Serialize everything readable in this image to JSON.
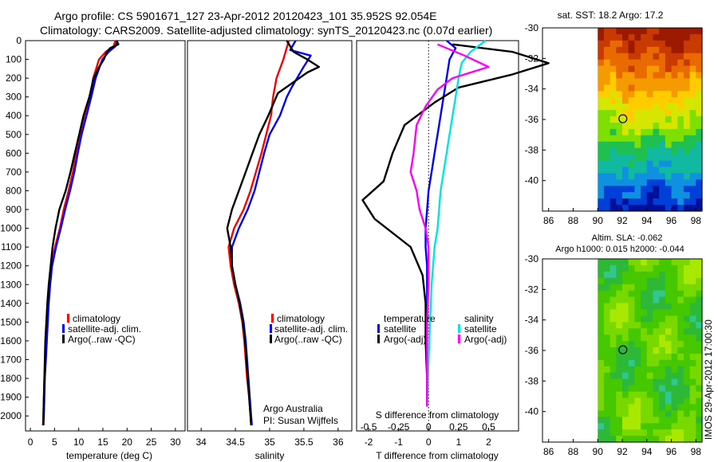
{
  "header": {
    "line1": "Argo profile: CS 5901671_127 23-Apr-2012 20120423_101 35.952S 92.054E",
    "line2": "Climatology: CARS2009. Satellite-adjusted climatology: synTS_20120423.nc (0.07d earlier)"
  },
  "credits": {
    "program": "Argo Australia",
    "pi": "PI: Susan Wijffels",
    "side_stamp": "IMOS 29-Apr-2012 17:00:30"
  },
  "colors": {
    "climatology": "#ff0000",
    "satellite": "#0000ff",
    "argo": "#000000",
    "sat_salinity": "#00e5e5",
    "argo_salinity": "#ff00ff",
    "marker": "#000000"
  },
  "chart_data": [
    {
      "id": "temperature",
      "type": "line",
      "xlabel": "temperature (deg C)",
      "xlim": [
        -1,
        32
      ],
      "xticks": [
        0,
        5,
        10,
        15,
        20,
        25,
        30
      ],
      "ylim": [
        0,
        2080
      ],
      "yticks": [
        0,
        100,
        200,
        300,
        400,
        500,
        600,
        700,
        800,
        900,
        1000,
        1100,
        1200,
        1300,
        1400,
        1500,
        1600,
        1700,
        1800,
        1900,
        2000
      ],
      "legend": [
        "climatology",
        "satellite-adj. clim.",
        "Argo(..raw -QC)"
      ],
      "series": [
        {
          "name": "climatology",
          "color_key": "climatology",
          "points": [
            [
              17.6,
              0
            ],
            [
              17.2,
              30
            ],
            [
              15.6,
              60
            ],
            [
              14.2,
              100
            ],
            [
              13.6,
              150
            ],
            [
              13.0,
              200
            ],
            [
              12.3,
              300
            ],
            [
              11.2,
              400
            ],
            [
              10.3,
              500
            ],
            [
              9.5,
              600
            ],
            [
              8.8,
              700
            ],
            [
              7.9,
              800
            ],
            [
              6.9,
              900
            ],
            [
              6.1,
              1000
            ],
            [
              5.1,
              1100
            ],
            [
              4.4,
              1200
            ],
            [
              4.0,
              1300
            ],
            [
              3.7,
              1400
            ],
            [
              3.5,
              1500
            ],
            [
              3.3,
              1600
            ],
            [
              3.1,
              1700
            ],
            [
              2.9,
              1800
            ],
            [
              2.8,
              1900
            ],
            [
              2.7,
              2000
            ],
            [
              2.6,
              2050
            ]
          ]
        },
        {
          "name": "satellite-adj. clim.",
          "color_key": "satellite",
          "points": [
            [
              18.0,
              0
            ],
            [
              17.6,
              30
            ],
            [
              16.2,
              60
            ],
            [
              14.9,
              100
            ],
            [
              14.2,
              150
            ],
            [
              13.5,
              200
            ],
            [
              12.6,
              300
            ],
            [
              11.6,
              400
            ],
            [
              10.6,
              500
            ],
            [
              9.8,
              600
            ],
            [
              9.1,
              700
            ],
            [
              8.2,
              800
            ],
            [
              7.2,
              900
            ],
            [
              6.3,
              1000
            ],
            [
              5.3,
              1100
            ],
            [
              4.5,
              1200
            ],
            [
              4.1,
              1300
            ],
            [
              3.8,
              1400
            ],
            [
              3.6,
              1500
            ],
            [
              3.4,
              1600
            ],
            [
              3.2,
              1700
            ],
            [
              3.0,
              1800
            ],
            [
              2.9,
              1900
            ],
            [
              2.8,
              2000
            ],
            [
              2.7,
              2050
            ]
          ]
        },
        {
          "name": "Argo(..raw -QC)",
          "color_key": "argo",
          "points": [
            [
              17.8,
              0
            ],
            [
              18.2,
              20
            ],
            [
              16.5,
              40
            ],
            [
              15.8,
              60
            ],
            [
              15.2,
              100
            ],
            [
              14.0,
              150
            ],
            [
              13.1,
              200
            ],
            [
              12.2,
              300
            ],
            [
              11.0,
              400
            ],
            [
              10.1,
              500
            ],
            [
              9.2,
              600
            ],
            [
              8.3,
              700
            ],
            [
              7.3,
              800
            ],
            [
              6.0,
              900
            ],
            [
              5.2,
              1000
            ],
            [
              4.6,
              1100
            ],
            [
              4.2,
              1200
            ],
            [
              3.8,
              1300
            ],
            [
              3.5,
              1400
            ],
            [
              3.3,
              1500
            ],
            [
              3.1,
              1600
            ],
            [
              3.0,
              1700
            ],
            [
              2.9,
              1800
            ],
            [
              2.8,
              1900
            ],
            [
              2.7,
              2000
            ],
            [
              2.7,
              2050
            ]
          ]
        }
      ]
    },
    {
      "id": "salinity",
      "type": "line",
      "xlabel": "salinity",
      "xlim": [
        33.8,
        36.2
      ],
      "xticks": [
        34,
        34.5,
        35,
        35.5,
        36
      ],
      "ylim": [
        0,
        2080
      ],
      "legend": [
        "climatology",
        "satellite-adj. clim.",
        "Argo(..raw -QC)"
      ],
      "series": [
        {
          "name": "climatology",
          "color_key": "climatology",
          "points": [
            [
              35.28,
              0
            ],
            [
              35.2,
              100
            ],
            [
              35.1,
              200
            ],
            [
              35.05,
              300
            ],
            [
              35.02,
              400
            ],
            [
              34.95,
              500
            ],
            [
              34.88,
              600
            ],
            [
              34.8,
              700
            ],
            [
              34.72,
              800
            ],
            [
              34.62,
              900
            ],
            [
              34.48,
              1000
            ],
            [
              34.4,
              1100
            ],
            [
              34.43,
              1200
            ],
            [
              34.48,
              1300
            ],
            [
              34.55,
              1400
            ],
            [
              34.6,
              1500
            ],
            [
              34.63,
              1600
            ],
            [
              34.65,
              1700
            ],
            [
              34.67,
              1800
            ],
            [
              34.7,
              1900
            ],
            [
              34.72,
              2000
            ],
            [
              34.73,
              2050
            ]
          ]
        },
        {
          "name": "satellite-adj. clim.",
          "color_key": "satellite",
          "points": [
            [
              35.38,
              0
            ],
            [
              35.3,
              50
            ],
            [
              35.6,
              80
            ],
            [
              35.48,
              150
            ],
            [
              35.32,
              250
            ],
            [
              35.25,
              300
            ],
            [
              35.15,
              400
            ],
            [
              35.0,
              500
            ],
            [
              34.92,
              600
            ],
            [
              34.85,
              700
            ],
            [
              34.78,
              800
            ],
            [
              34.68,
              900
            ],
            [
              34.55,
              1000
            ],
            [
              34.45,
              1100
            ],
            [
              34.45,
              1200
            ],
            [
              34.5,
              1300
            ],
            [
              34.57,
              1400
            ],
            [
              34.62,
              1500
            ],
            [
              34.65,
              1600
            ],
            [
              34.67,
              1700
            ],
            [
              34.69,
              1800
            ],
            [
              34.71,
              1900
            ],
            [
              34.73,
              2000
            ],
            [
              34.74,
              2050
            ]
          ]
        },
        {
          "name": "Argo(..raw -QC)",
          "color_key": "argo",
          "points": [
            [
              35.25,
              0
            ],
            [
              35.35,
              60
            ],
            [
              35.55,
              100
            ],
            [
              35.72,
              140
            ],
            [
              35.55,
              170
            ],
            [
              35.12,
              280
            ],
            [
              34.98,
              400
            ],
            [
              34.85,
              500
            ],
            [
              34.75,
              600
            ],
            [
              34.65,
              700
            ],
            [
              34.55,
              800
            ],
            [
              34.45,
              900
            ],
            [
              34.38,
              1000
            ],
            [
              34.43,
              1100
            ],
            [
              34.45,
              1200
            ],
            [
              34.5,
              1300
            ],
            [
              34.56,
              1400
            ],
            [
              34.61,
              1500
            ],
            [
              34.64,
              1600
            ],
            [
              34.66,
              1700
            ],
            [
              34.68,
              1800
            ],
            [
              34.7,
              1900
            ],
            [
              34.72,
              2000
            ],
            [
              34.73,
              2050
            ]
          ]
        }
      ]
    },
    {
      "id": "difference",
      "type": "line",
      "xlabel": "T difference from climatology",
      "xlabel_top": "S difference from climatology",
      "xlim": [
        -2.4,
        3.0
      ],
      "xticks": [
        -2,
        -1,
        0,
        1,
        2
      ],
      "xticks_top": [
        {
          "label": "-0.5",
          "x": -2
        },
        {
          "label": "-0.25",
          "x": -1
        },
        {
          "label": "0",
          "x": 0
        },
        {
          "label": "0.25",
          "x": 1
        },
        {
          "label": "0.5",
          "x": 2
        }
      ],
      "ylim": [
        0,
        2080
      ],
      "zero_line": 0,
      "legend_left_title": "temperature",
      "legend_right_title": "salinity",
      "legend": [
        "satellite",
        "Argo(-adj)",
        "satellite",
        "Argo(-adj)"
      ],
      "series": [
        {
          "name": "satellite",
          "color_key": "satellite",
          "points": [
            [
              0.6,
              0
            ],
            [
              0.9,
              40
            ],
            [
              0.7,
              100
            ],
            [
              0.6,
              200
            ],
            [
              0.5,
              300
            ],
            [
              0.4,
              400
            ],
            [
              0.3,
              500
            ],
            [
              0.2,
              600
            ],
            [
              0.1,
              700
            ],
            [
              0.0,
              800
            ],
            [
              -0.1,
              1000
            ],
            [
              -0.1,
              1100
            ],
            [
              -0.05,
              1200
            ],
            [
              -0.05,
              1400
            ],
            [
              -0.05,
              1600
            ],
            [
              -0.05,
              1800
            ],
            [
              -0.05,
              1950
            ]
          ]
        },
        {
          "name": "Argo(-adj)",
          "color_key": "argo",
          "points": [
            [
              0.8,
              20
            ],
            [
              2.8,
              60
            ],
            [
              4.0,
              120
            ],
            [
              2.8,
              180
            ],
            [
              1.0,
              250
            ],
            [
              0.2,
              330
            ],
            [
              -0.8,
              450
            ],
            [
              -1.2,
              600
            ],
            [
              -1.5,
              750
            ],
            [
              -2.2,
              850
            ],
            [
              -1.8,
              950
            ],
            [
              -0.6,
              1100
            ],
            [
              -0.2,
              1250
            ],
            [
              -0.1,
              1400
            ],
            [
              -0.1,
              1600
            ],
            [
              -0.05,
              1800
            ],
            [
              -0.05,
              1950
            ]
          ]
        },
        {
          "name": "sat salinity",
          "color_key": "sat_salinity",
          "points": [
            [
              1.9,
              0
            ],
            [
              1.4,
              60
            ],
            [
              1.1,
              120
            ],
            [
              1.0,
              200
            ],
            [
              0.9,
              300
            ],
            [
              0.8,
              400
            ],
            [
              0.7,
              500
            ],
            [
              0.6,
              600
            ],
            [
              0.5,
              700
            ],
            [
              0.4,
              800
            ],
            [
              0.35,
              900
            ],
            [
              0.3,
              1000
            ],
            [
              0.2,
              1100
            ],
            [
              0.15,
              1200
            ],
            [
              0.1,
              1300
            ],
            [
              0.05,
              1500
            ],
            [
              0.0,
              1700
            ],
            [
              -0.05,
              1950
            ]
          ]
        },
        {
          "name": "Argo salinity",
          "color_key": "argo_salinity",
          "points": [
            [
              0.3,
              20
            ],
            [
              1.2,
              80
            ],
            [
              2.0,
              140
            ],
            [
              0.8,
              200
            ],
            [
              0.3,
              260
            ],
            [
              -0.1,
              350
            ],
            [
              -0.4,
              450
            ],
            [
              -0.5,
              600
            ],
            [
              -0.6,
              700
            ],
            [
              -0.4,
              800
            ],
            [
              -0.3,
              900
            ],
            [
              -0.1,
              1000
            ],
            [
              0.0,
              1100
            ],
            [
              0.0,
              1300
            ],
            [
              -0.05,
              1500
            ],
            [
              -0.05,
              1800
            ],
            [
              -0.05,
              1950
            ]
          ]
        }
      ]
    },
    {
      "id": "sst_map",
      "type": "heatmap",
      "title": "sat. SST: 18.2 Argo: 17.2",
      "xlim": [
        85.5,
        98.5
      ],
      "xticks": [
        86,
        88,
        90,
        92,
        94,
        96,
        98
      ],
      "ylim": [
        -42,
        -30
      ],
      "yticks": [
        -30,
        -32,
        -34,
        -36,
        -38,
        -40
      ],
      "data_x_start": 90,
      "marker": [
        92.05,
        -35.95
      ],
      "colors": [
        "#9b1a00",
        "#c83a00",
        "#e86a00",
        "#f59a00",
        "#ffcc00",
        "#d6e600",
        "#7fdf00",
        "#20c050",
        "#10b9a0",
        "#1090e0",
        "#0040d8",
        "#00109a"
      ]
    },
    {
      "id": "sla_map",
      "type": "heatmap",
      "title": "Altim. SLA: -0.062",
      "subtitle": "Argo h1000: 0.015 h2000: -0.044",
      "xlim": [
        85.5,
        98.5
      ],
      "xticks": [
        86,
        88,
        90,
        92,
        94,
        96,
        98
      ],
      "ylim": [
        -42,
        -30
      ],
      "yticks": [
        -30,
        -32,
        -34,
        -36,
        -38,
        -40
      ],
      "data_x_start": 90,
      "marker": [
        92.05,
        -35.95
      ],
      "colors": [
        "#a9e800",
        "#78d800",
        "#46c800",
        "#2eb838",
        "#30c890"
      ]
    }
  ]
}
